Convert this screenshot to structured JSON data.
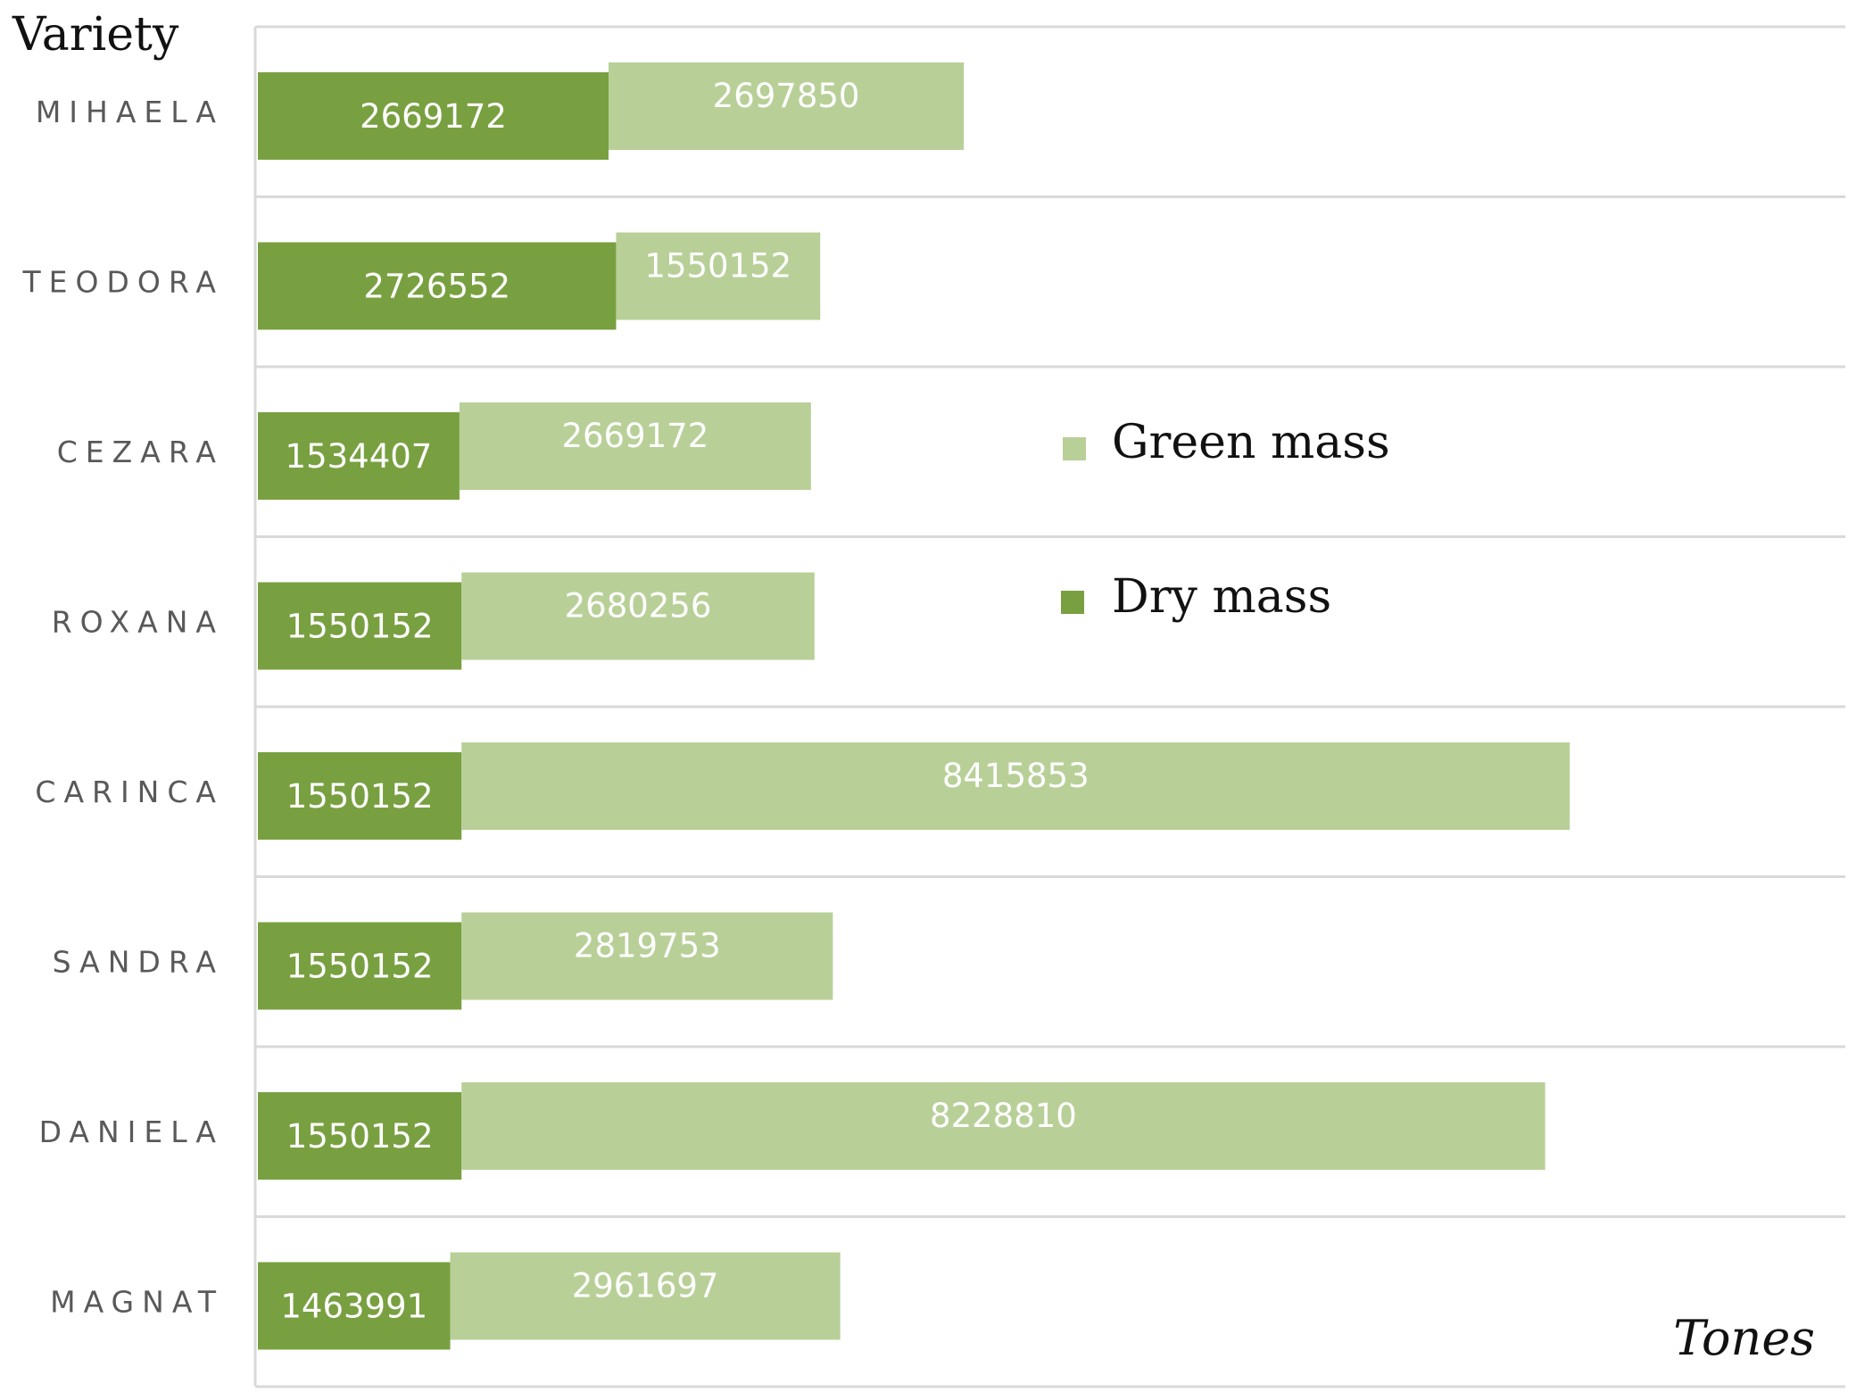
{
  "chart_data": {
    "type": "bar",
    "orientation": "horizontal",
    "ylabel": "Variety",
    "xlabel": "Tones",
    "categories": [
      "MIHAELA",
      "TEODORA",
      "CEZARA",
      "ROXANA",
      "CARINCA",
      "SANDRA",
      "DANIELA",
      "MAGNAT"
    ],
    "series": [
      {
        "name": "Dry mass",
        "color": "#78a040",
        "values": [
          2669172,
          2726552,
          1534407,
          1550152,
          1550152,
          1550152,
          1550152,
          1463991
        ]
      },
      {
        "name": "Green mass",
        "color": "#b8d098",
        "values": [
          2697850,
          1550152,
          2669172,
          2680256,
          8415853,
          2819753,
          8228810,
          2961697
        ]
      }
    ],
    "xlim": [
      0,
      12000000
    ],
    "grid": true,
    "legend_position": "center-right"
  }
}
